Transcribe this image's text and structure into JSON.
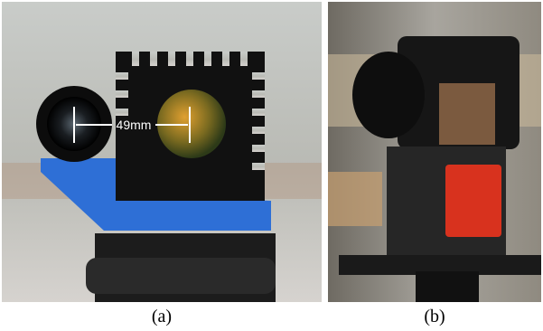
{
  "panels": [
    {
      "label": "(a)",
      "annotation": "49mm"
    },
    {
      "label": "(b)"
    }
  ]
}
